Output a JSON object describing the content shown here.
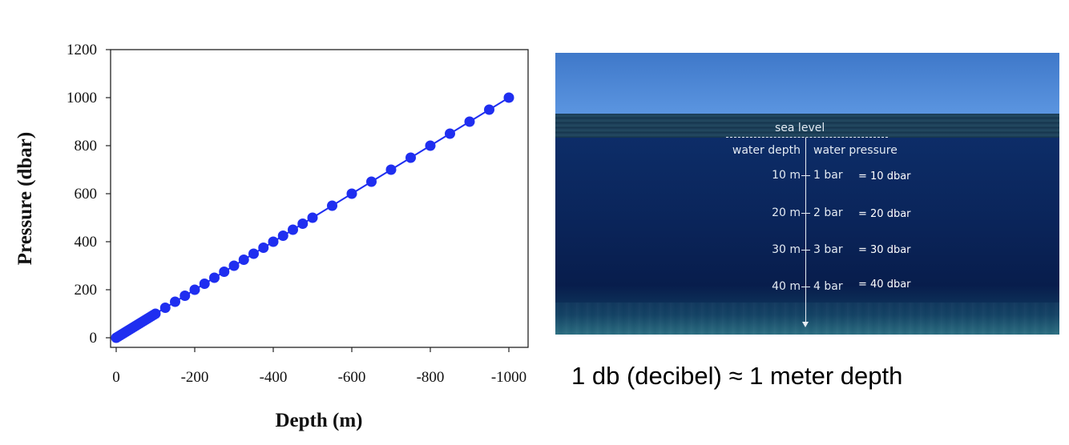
{
  "chart_data": {
    "type": "line",
    "xlabel": "Depth (m)",
    "ylabel": "Pressure (dbar)",
    "xlim": [
      0,
      -1000
    ],
    "ylim": [
      0,
      1200
    ],
    "x_ticks": [
      "0",
      "-200",
      "-400",
      "-600",
      "-800",
      "-1000"
    ],
    "y_ticks": [
      "0",
      "200",
      "400",
      "600",
      "800",
      "1000",
      "1200"
    ],
    "grid": false,
    "marker": "circle",
    "color": "#1f2ef0",
    "x": [
      0,
      -5,
      -10,
      -15,
      -20,
      -25,
      -30,
      -35,
      -40,
      -45,
      -50,
      -55,
      -60,
      -65,
      -70,
      -75,
      -80,
      -85,
      -90,
      -95,
      -100,
      -125,
      -150,
      -175,
      -200,
      -225,
      -250,
      -275,
      -300,
      -325,
      -350,
      -375,
      -400,
      -425,
      -450,
      -475,
      -500,
      -550,
      -600,
      -650,
      -700,
      -750,
      -800,
      -850,
      -900,
      -950,
      -1000
    ],
    "y": [
      0,
      5,
      10,
      15,
      20,
      25,
      30,
      35,
      40,
      45,
      50,
      55,
      60,
      65,
      70,
      75,
      80,
      85,
      90,
      95,
      100,
      125,
      150,
      175,
      200,
      225,
      250,
      275,
      300,
      325,
      350,
      375,
      400,
      425,
      450,
      475,
      500,
      550,
      600,
      650,
      700,
      750,
      800,
      850,
      900,
      950,
      1000
    ]
  },
  "ocean": {
    "sea_level": "sea level",
    "header_depth": "water depth",
    "header_pressure": "water pressure",
    "rows": [
      {
        "depth": "10 m",
        "pressure": "1 bar",
        "dbar": "= 10 dbar"
      },
      {
        "depth": "20 m",
        "pressure": "2 bar",
        "dbar": "= 20 dbar"
      },
      {
        "depth": "30 m",
        "pressure": "3 bar",
        "dbar": "= 30 dbar"
      },
      {
        "depth": "40 m",
        "pressure": "4 bar",
        "dbar": "= 40 dbar"
      }
    ]
  },
  "caption": "1 db (decibel) ≈ 1 meter depth"
}
